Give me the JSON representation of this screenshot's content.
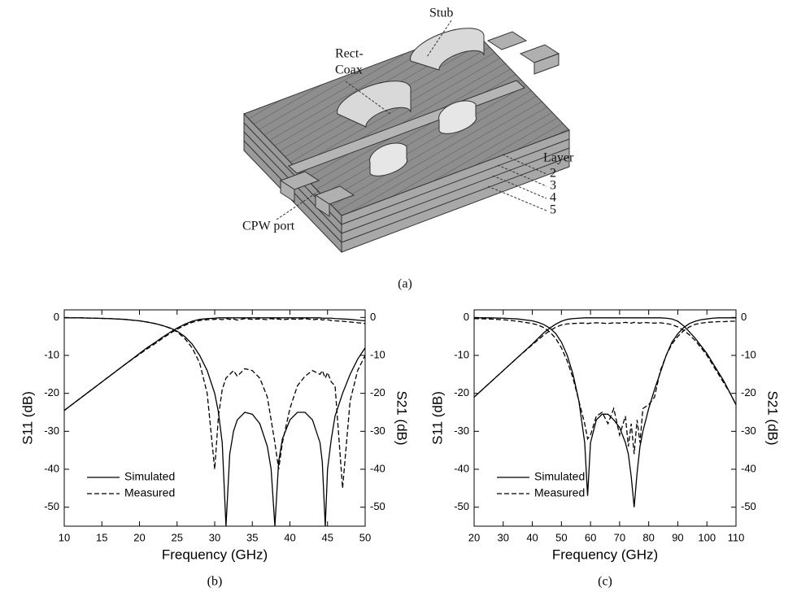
{
  "diagram": {
    "labels": {
      "stub": "Stub",
      "rect_coax": [
        "Rect-",
        "Coax"
      ],
      "layer": "Layer",
      "layer_numbers": [
        "2",
        "3",
        "4",
        "5"
      ],
      "cpw_port": "CPW port"
    },
    "caption": "(a)"
  },
  "chart_data": [
    {
      "type": "line",
      "caption": "(b)",
      "xlabel": "Frequency (GHz)",
      "ylabel": "S11 (dB)",
      "y2label": "S21 (dB)",
      "xlim": [
        10,
        50
      ],
      "xticks": [
        10,
        15,
        20,
        25,
        30,
        35,
        40,
        45,
        50
      ],
      "ylim": [
        -55,
        2
      ],
      "yticks": [
        0,
        -10,
        -20,
        -30,
        -40,
        -50
      ],
      "y2lim": [
        -55,
        2
      ],
      "y2ticks": [
        0,
        -10,
        -20,
        -30,
        -40,
        -50
      ],
      "legend": "lower left",
      "x": [
        10,
        12,
        14,
        16,
        18,
        20,
        21,
        22,
        23,
        24,
        25,
        26,
        27,
        28,
        29,
        30,
        30.5,
        31,
        31.5,
        32,
        32.5,
        33,
        34,
        35,
        36,
        37,
        37.5,
        38,
        38.5,
        39,
        40,
        41,
        42,
        43,
        44,
        44.3,
        44.7,
        45,
        45.5,
        46,
        47,
        48,
        49,
        50
      ],
      "series": [
        {
          "name": "Simulated",
          "color": "#000000",
          "linestyle": "solid",
          "s11_values": [
            -0.1,
            -0.1,
            -0.2,
            -0.3,
            -0.5,
            -0.9,
            -1.2,
            -1.6,
            -2.1,
            -2.7,
            -3.6,
            -5,
            -7,
            -10,
            -14,
            -20,
            -25,
            -33,
            -55,
            -36,
            -30,
            -27,
            -25,
            -25.5,
            -28,
            -34,
            -40,
            -55,
            -38,
            -32,
            -27,
            -25,
            -25,
            -27,
            -33,
            -38,
            -55,
            -40,
            -32,
            -26,
            -20,
            -15,
            -11,
            -8
          ],
          "s21_values": [
            -24.5,
            -21.5,
            -18.5,
            -15.5,
            -12.5,
            -9.5,
            -8,
            -6.7,
            -5.3,
            -4,
            -2.8,
            -1.8,
            -1,
            -0.5,
            -0.3,
            -0.2,
            -0.1,
            -0.1,
            -0.1,
            -0.1,
            -0.1,
            -0.1,
            -0.1,
            -0.1,
            -0.1,
            -0.1,
            -0.1,
            -0.1,
            -0.1,
            -0.1,
            -0.1,
            -0.1,
            -0.1,
            -0.1,
            -0.1,
            -0.2,
            -0.2,
            -0.2,
            -0.2,
            -0.3,
            -0.4,
            -0.5,
            -0.7,
            -0.9
          ]
        },
        {
          "name": "Measured",
          "color": "#000000",
          "linestyle": "dashed",
          "s11_values": [
            -0.1,
            -0.1,
            -0.2,
            -0.3,
            -0.5,
            -0.9,
            -1.2,
            -1.6,
            -2.1,
            -2.8,
            -3.8,
            -5.5,
            -8,
            -12,
            -20,
            -40,
            -26,
            -19,
            -16,
            -15,
            -14,
            -15.5,
            -13.5,
            -14,
            -16,
            -21,
            -27,
            -33,
            -40,
            -33,
            -24,
            -18,
            -15.5,
            -14,
            -15,
            -14,
            -16,
            -14.5,
            -17,
            -18,
            -45,
            -22,
            -14,
            -10
          ],
          "s21_values": [
            -24.5,
            -21.5,
            -18.5,
            -15.5,
            -12.5,
            -9.7,
            -8.3,
            -7,
            -5.6,
            -4.3,
            -3.1,
            -2.1,
            -1.3,
            -0.8,
            -0.6,
            -0.5,
            -0.4,
            -0.6,
            -0.3,
            -0.5,
            -0.4,
            -0.7,
            -0.3,
            -0.5,
            -0.4,
            -0.6,
            -0.3,
            -0.5,
            -0.4,
            -0.6,
            -0.4,
            -0.5,
            -0.3,
            -0.6,
            -0.4,
            -0.7,
            -0.5,
            -0.6,
            -0.8,
            -0.9,
            -1,
            -1.2,
            -1.4,
            -1.6
          ]
        }
      ]
    },
    {
      "type": "line",
      "caption": "(c)",
      "xlabel": "Frequency (GHz)",
      "ylabel": "S11 (dB)",
      "y2label": "S21 (dB)",
      "xlim": [
        20,
        110
      ],
      "xticks": [
        20,
        30,
        40,
        50,
        60,
        70,
        80,
        90,
        100,
        110
      ],
      "ylim": [
        -55,
        2
      ],
      "yticks": [
        0,
        -10,
        -20,
        -30,
        -40,
        -50
      ],
      "y2lim": [
        -55,
        2
      ],
      "y2ticks": [
        0,
        -10,
        -20,
        -30,
        -40,
        -50
      ],
      "legend": "lower left",
      "x": [
        20,
        25,
        30,
        35,
        40,
        42,
        44,
        46,
        48,
        50,
        52,
        54,
        56,
        58,
        59,
        60,
        62,
        64,
        66,
        68,
        70,
        72,
        73,
        74,
        75,
        76,
        77,
        78,
        80,
        82,
        84,
        86,
        88,
        90,
        92,
        94,
        96,
        98,
        100,
        102,
        104,
        106,
        108,
        110
      ],
      "series": [
        {
          "name": "Simulated",
          "color": "#000000",
          "linestyle": "solid",
          "s11_values": [
            -0.1,
            -0.1,
            -0.2,
            -0.4,
            -0.9,
            -1.3,
            -1.9,
            -2.8,
            -4.2,
            -6.5,
            -10,
            -15,
            -22,
            -33,
            -47,
            -33,
            -27,
            -25.5,
            -25.5,
            -27,
            -29,
            -33,
            -36,
            -42,
            -50,
            -41,
            -34,
            -30,
            -24,
            -19,
            -14.5,
            -10,
            -6.5,
            -4.3,
            -2.7,
            -1.6,
            -1,
            -0.6,
            -0.4,
            -0.2,
            -0.1,
            -0.1,
            -0.1,
            -0.1
          ],
          "s21_values": [
            -21,
            -17.5,
            -14,
            -10.5,
            -7,
            -5.5,
            -4,
            -2.8,
            -1.8,
            -1,
            -0.5,
            -0.3,
            -0.2,
            -0.1,
            -0.1,
            -0.1,
            -0.1,
            -0.1,
            -0.1,
            -0.1,
            -0.1,
            -0.1,
            -0.1,
            -0.1,
            -0.1,
            -0.1,
            -0.1,
            -0.1,
            -0.1,
            -0.1,
            -0.1,
            -0.2,
            -0.4,
            -1,
            -2.2,
            -3.8,
            -5.5,
            -7.5,
            -9.5,
            -12,
            -14.5,
            -17,
            -20,
            -23
          ]
        },
        {
          "name": "Measured",
          "color": "#000000",
          "linestyle": "dashed",
          "s11_values": [
            -0.3,
            -0.4,
            -0.6,
            -1,
            -1.6,
            -2,
            -2.7,
            -3.8,
            -5.5,
            -8,
            -11.5,
            -16,
            -22,
            -28,
            -32,
            -31,
            -26,
            -25,
            -28,
            -24,
            -31,
            -26,
            -34,
            -28,
            -36,
            -27,
            -33,
            -24,
            -23,
            -21,
            -14,
            -10,
            -7,
            -5,
            -3.5,
            -2.5,
            -1.8,
            -1.5,
            -1.3,
            -1.2,
            -1.1,
            -1.1,
            -1,
            -1
          ],
          "s21_values": [
            -21,
            -17.5,
            -14,
            -10.5,
            -7.2,
            -5.9,
            -4.6,
            -3.5,
            -2.6,
            -2,
            -1.7,
            -1.6,
            -1.5,
            -1.5,
            -1.6,
            -1.5,
            -1.4,
            -1.5,
            -1.6,
            -1.4,
            -1.5,
            -1.3,
            -1.4,
            -1.5,
            -1.3,
            -1.4,
            -1.5,
            -1.3,
            -1.4,
            -1.5,
            -1.4,
            -1.6,
            -1.9,
            -2.5,
            -3.4,
            -4.6,
            -6.1,
            -8,
            -10,
            -12.5,
            -15,
            -17.5,
            -20,
            -23
          ]
        }
      ]
    }
  ]
}
